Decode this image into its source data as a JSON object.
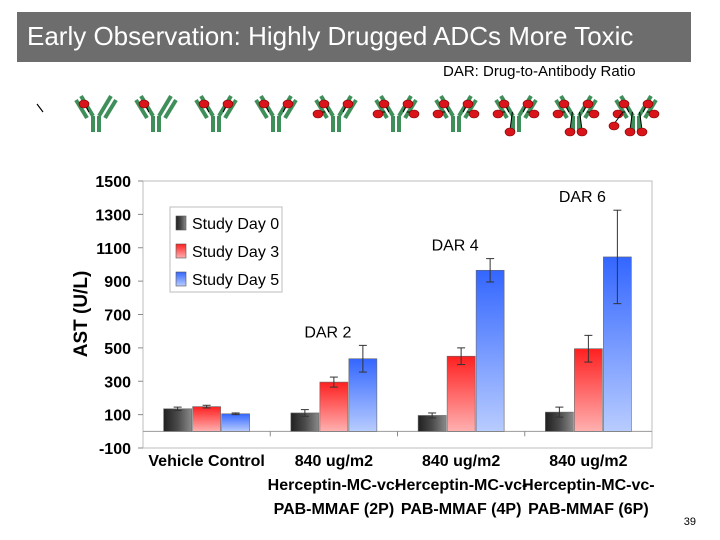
{
  "slide": {
    "title": "Early Observation: Highly Drugged ADCs More Toxic",
    "subtitle": "DAR: Drug-to-Antibody Ratio",
    "page_number": "39"
  },
  "colors": {
    "title_bar": "#6d6d6d",
    "antibody": "#3f8f5a",
    "drug": "#d9141a",
    "series": [
      "#3a3a3a",
      "#ff3030",
      "#5f8cff"
    ]
  },
  "antibody_strip": {
    "drugs_per_antibody": [
      0,
      1,
      1,
      2,
      2,
      3,
      4,
      4,
      5,
      6,
      7
    ]
  },
  "chart_data": {
    "type": "bar",
    "ylabel": "AST (U/L)",
    "ylim": [
      -100,
      1500
    ],
    "yticks": [
      -100,
      100,
      300,
      500,
      700,
      900,
      1100,
      1300,
      1500
    ],
    "grid": false,
    "legend_position": "upper-left",
    "categories": [
      [
        "Vehicle Control"
      ],
      [
        "840 ug/m2",
        "Herceptin-MC-vc-",
        "PAB-MMAF (2P)"
      ],
      [
        "840 ug/m2",
        "Herceptin-MC-vc-",
        "PAB-MMAF (4P)"
      ],
      [
        "840 ug/m2",
        "Herceptin-MC-vc-",
        "PAB-MMAF (6P)"
      ]
    ],
    "series": [
      {
        "name": "Study Day 0",
        "values": [
          135,
          110,
          95,
          115
        ],
        "errors": [
          10,
          20,
          15,
          30
        ]
      },
      {
        "name": "Study Day 3",
        "values": [
          148,
          295,
          450,
          495
        ],
        "errors": [
          8,
          30,
          50,
          80
        ]
      },
      {
        "name": "Study Day 5",
        "values": [
          105,
          435,
          965,
          1045
        ],
        "errors": [
          5,
          80,
          70,
          280
        ]
      }
    ],
    "annotations": [
      {
        "text": "DAR 2",
        "category_index": 1
      },
      {
        "text": "DAR 4",
        "category_index": 2
      },
      {
        "text": "DAR 6",
        "category_index": 3
      }
    ]
  }
}
